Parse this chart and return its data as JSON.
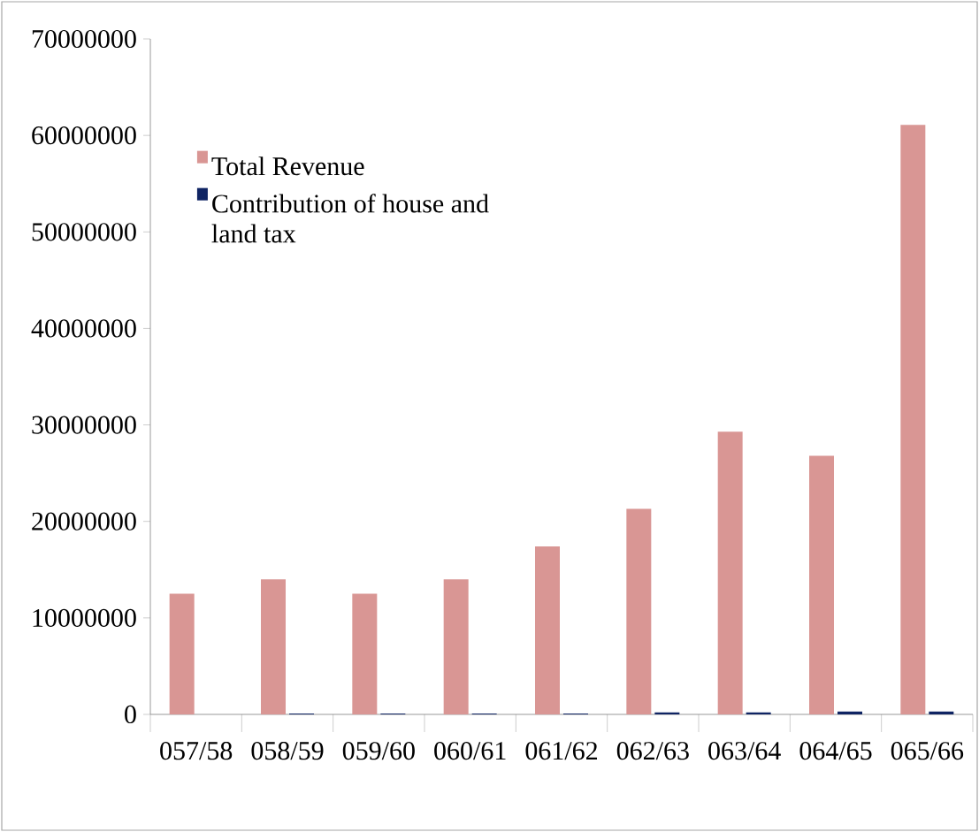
{
  "chart_data": {
    "type": "bar",
    "categories": [
      "057/58",
      "058/59",
      "059/60",
      "060/61",
      "061/62",
      "062/63",
      "063/64",
      "064/65",
      "065/66"
    ],
    "series": [
      {
        "name": "Total Revenue",
        "color": "#d99694",
        "values": [
          12500000,
          14000000,
          12500000,
          14000000,
          17400000,
          21300000,
          29300000,
          26800000,
          61100000
        ]
      },
      {
        "name": "Contribution of house and land tax",
        "color": "#0f2463",
        "values": [
          null,
          100000,
          100000,
          100000,
          100000,
          200000,
          200000,
          300000,
          300000
        ]
      }
    ],
    "ylim": [
      0,
      70000000
    ],
    "yticks": [
      0,
      10000000,
      20000000,
      30000000,
      40000000,
      50000000,
      60000000,
      70000000
    ],
    "grid": false,
    "legend": "top left"
  }
}
